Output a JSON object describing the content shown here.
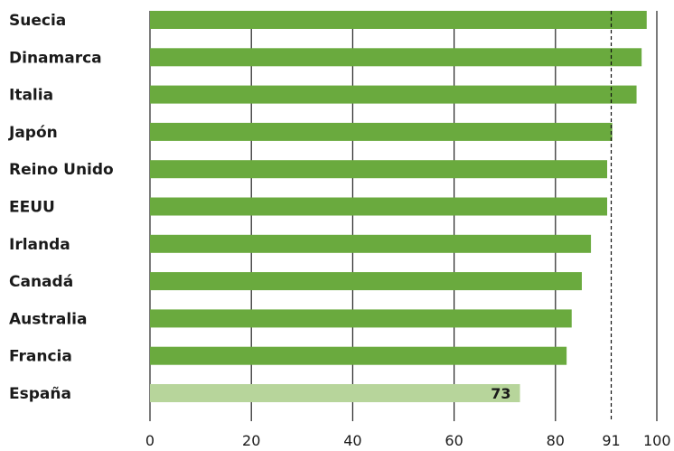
{
  "chart_data": {
    "type": "bar",
    "orientation": "horizontal",
    "title": "",
    "xlabel": "",
    "ylabel": "",
    "categories": [
      "Suecia",
      "Dinamarca",
      "Italia",
      "Japón",
      "Reino Unido",
      "EEUU",
      "Irlanda",
      "Canadá",
      "Australia",
      "Francia",
      "España"
    ],
    "values": [
      98,
      97,
      96,
      91.2,
      90.2,
      90.2,
      87,
      85.2,
      83.2,
      82.2,
      73
    ],
    "highlight": {
      "category": "España",
      "data_label": "73"
    },
    "reference_line": {
      "value": 91,
      "style": "dashed",
      "label": "91"
    },
    "xlim": [
      0,
      100
    ],
    "xticks": [
      "0",
      "20",
      "40",
      "60",
      "80",
      "100"
    ],
    "grid": true,
    "colors": {
      "bar": "#6aaa3e",
      "highlight_bar": "#b7d59b",
      "grid": "#222222"
    }
  }
}
